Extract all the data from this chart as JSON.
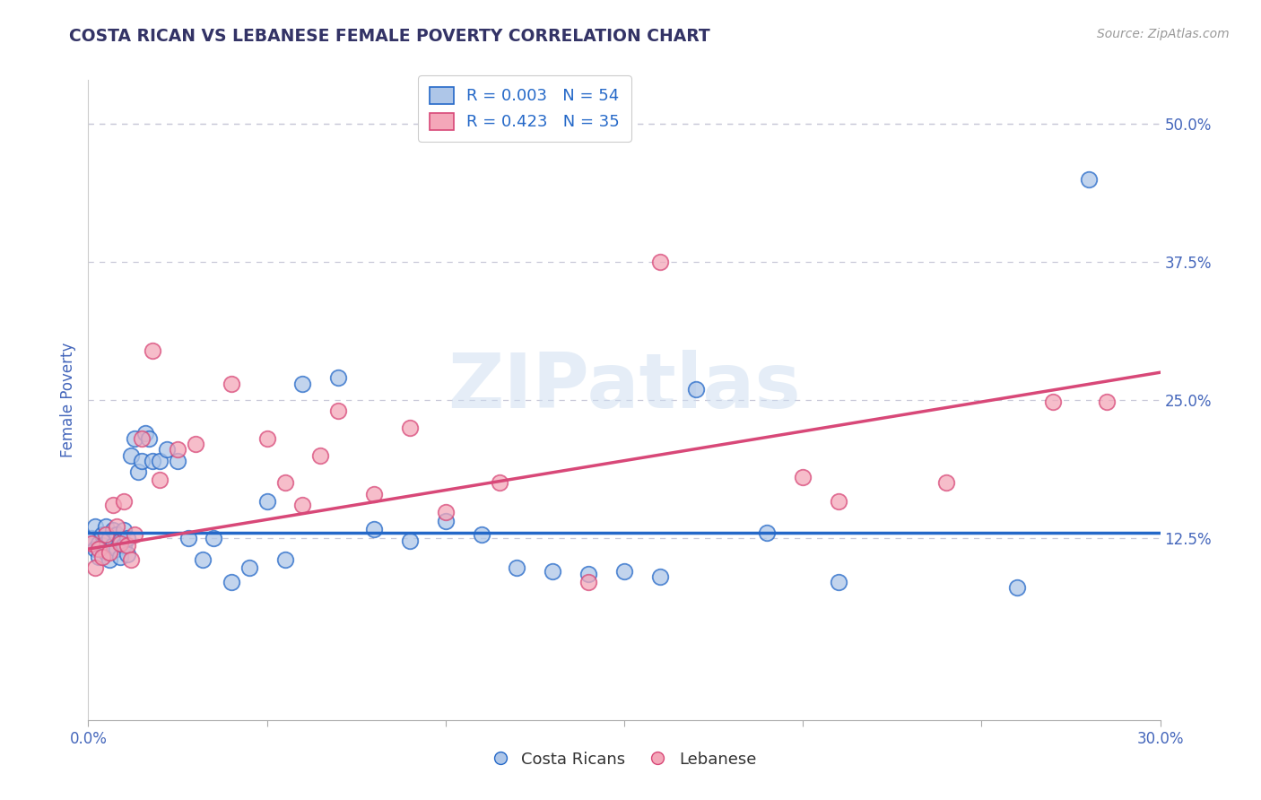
{
  "title": "COSTA RICAN VS LEBANESE FEMALE POVERTY CORRELATION CHART",
  "source": "Source: ZipAtlas.com",
  "xlabel_cr": "Costa Ricans",
  "xlabel_lb": "Lebanese",
  "ylabel": "Female Poverty",
  "xlim": [
    0.0,
    0.3
  ],
  "ylim": [
    -0.04,
    0.54
  ],
  "xticks": [
    0.0,
    0.05,
    0.1,
    0.15,
    0.2,
    0.25,
    0.3
  ],
  "xtick_labels": [
    "0.0%",
    "",
    "",
    "",
    "",
    "",
    "30.0%"
  ],
  "ytick_positions": [
    0.125,
    0.25,
    0.375,
    0.5
  ],
  "ytick_labels": [
    "12.5%",
    "25.0%",
    "37.5%",
    "50.0%"
  ],
  "r_cr": 0.003,
  "n_cr": 54,
  "r_lb": 0.423,
  "n_lb": 35,
  "cr_color": "#aec6e8",
  "lb_color": "#f4a7b9",
  "cr_line_color": "#2468c8",
  "lb_line_color": "#d84878",
  "title_color": "#333366",
  "axis_label_color": "#4466bb",
  "legend_text_color": "#2468c8",
  "watermark": "ZIPatlas",
  "background_color": "#ffffff",
  "grid_color": "#c8c8d8",
  "cr_x": [
    0.001,
    0.002,
    0.002,
    0.003,
    0.003,
    0.004,
    0.004,
    0.005,
    0.005,
    0.006,
    0.006,
    0.007,
    0.007,
    0.008,
    0.008,
    0.009,
    0.009,
    0.01,
    0.01,
    0.011,
    0.011,
    0.012,
    0.013,
    0.014,
    0.015,
    0.016,
    0.017,
    0.018,
    0.02,
    0.022,
    0.025,
    0.028,
    0.032,
    0.035,
    0.04,
    0.045,
    0.05,
    0.055,
    0.06,
    0.07,
    0.08,
    0.09,
    0.1,
    0.11,
    0.12,
    0.13,
    0.14,
    0.15,
    0.16,
    0.17,
    0.19,
    0.21,
    0.26,
    0.28
  ],
  "cr_y": [
    0.125,
    0.115,
    0.135,
    0.12,
    0.108,
    0.128,
    0.118,
    0.135,
    0.112,
    0.125,
    0.105,
    0.132,
    0.118,
    0.128,
    0.115,
    0.122,
    0.108,
    0.132,
    0.118,
    0.125,
    0.11,
    0.2,
    0.215,
    0.185,
    0.195,
    0.22,
    0.215,
    0.195,
    0.195,
    0.205,
    0.195,
    0.125,
    0.105,
    0.125,
    0.085,
    0.098,
    0.158,
    0.105,
    0.265,
    0.27,
    0.133,
    0.122,
    0.14,
    0.128,
    0.098,
    0.095,
    0.092,
    0.095,
    0.09,
    0.26,
    0.13,
    0.085,
    0.08,
    0.45
  ],
  "lb_x": [
    0.001,
    0.002,
    0.003,
    0.004,
    0.005,
    0.006,
    0.007,
    0.008,
    0.009,
    0.01,
    0.011,
    0.012,
    0.013,
    0.015,
    0.018,
    0.02,
    0.025,
    0.03,
    0.04,
    0.05,
    0.055,
    0.06,
    0.065,
    0.07,
    0.08,
    0.09,
    0.1,
    0.115,
    0.14,
    0.16,
    0.2,
    0.21,
    0.24,
    0.27,
    0.285
  ],
  "lb_y": [
    0.12,
    0.098,
    0.115,
    0.108,
    0.128,
    0.112,
    0.155,
    0.135,
    0.12,
    0.158,
    0.118,
    0.105,
    0.128,
    0.215,
    0.295,
    0.178,
    0.205,
    0.21,
    0.265,
    0.215,
    0.175,
    0.155,
    0.2,
    0.24,
    0.165,
    0.225,
    0.148,
    0.175,
    0.085,
    0.375,
    0.18,
    0.158,
    0.175,
    0.248,
    0.248
  ],
  "cr_line_y0": 0.13,
  "cr_line_y1": 0.13,
  "lb_line_y0": 0.115,
  "lb_line_y1": 0.275
}
